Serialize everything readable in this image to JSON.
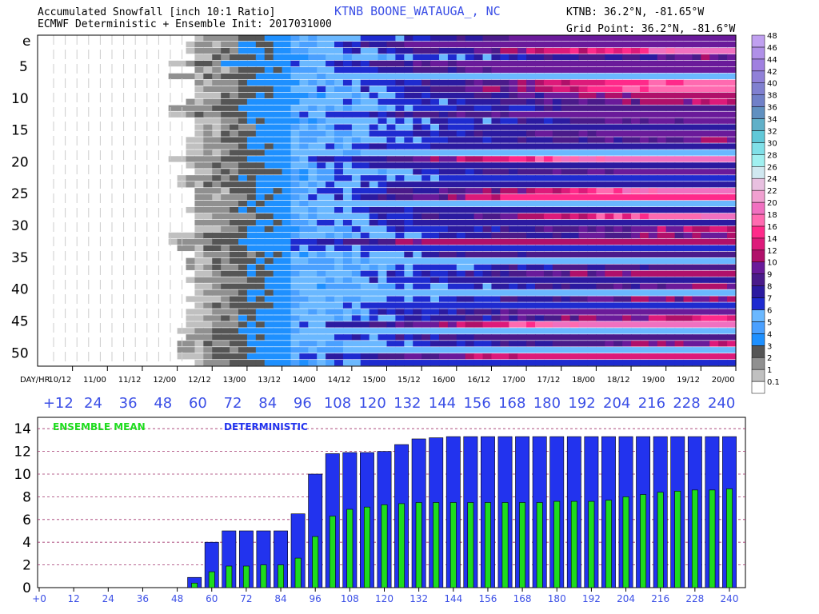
{
  "header": {
    "title_line1": "Accumulated Snowfall [inch 10:1 Ratio]",
    "title_line2": "ECMWF Deterministic + Ensemble Init: 2017031000",
    "station": "KTNB  BOONE_WATAUGA_, NC",
    "station_coords": "KTNB: 36.2°N, -81.65°W",
    "grid_point": "Grid Point: 36.2°N, -81.6°W"
  },
  "colors": {
    "accent_blue": "#3b4fe6",
    "ensemble_green": "#1edc1e",
    "deterministic_blue": "#2233ee",
    "gridline": "#a0306a"
  },
  "chart_data": [
    {
      "type": "heatmap",
      "title": "Accumulated Snowfall [inch 10:1 Ratio]",
      "ylabel_rows": [
        "e",
        "5",
        "10",
        "15",
        "20",
        "25",
        "30",
        "35",
        "40",
        "45",
        "50"
      ],
      "x_date_label": "DAY/HR",
      "x_dates": [
        "10/12",
        "11/00",
        "11/12",
        "12/00",
        "12/12",
        "13/00",
        "13/12",
        "14/00",
        "14/12",
        "15/00",
        "15/12",
        "16/00",
        "16/12",
        "17/00",
        "17/12",
        "18/00",
        "18/12",
        "19/00",
        "19/12",
        "20/00"
      ],
      "x_hours": [
        "+12",
        "24",
        "36",
        "48",
        "60",
        "72",
        "84",
        "96",
        "108",
        "120",
        "132",
        "144",
        "156",
        "168",
        "180",
        "192",
        "204",
        "216",
        "228",
        "240"
      ],
      "legend_levels": [
        "0.1",
        "1",
        "2",
        "3",
        "4",
        "5",
        "6",
        "7",
        "8",
        "9",
        "10",
        "12",
        "14",
        "16",
        "18",
        "20",
        "22",
        "24",
        "26",
        "28",
        "30",
        "32",
        "34",
        "36",
        "38",
        "40",
        "42",
        "44",
        "46",
        "48"
      ],
      "legend_colors": [
        "#ffffff",
        "#c0c0c0",
        "#909090",
        "#555555",
        "#1e90ff",
        "#4aa0ff",
        "#6ab8ff",
        "#1e2bd0",
        "#2b1aa0",
        "#4a1a8a",
        "#6a1a9a",
        "#b0106a",
        "#dd1a7a",
        "#ff2a8a",
        "#ff6ab0",
        "#f070c0",
        "#f0a0d0",
        "#e8c0e0",
        "#d0e8f0",
        "#a0f0f0",
        "#80e0e8",
        "#60c8d8",
        "#60b0c8",
        "#6090c0",
        "#7080c8",
        "#8080d0",
        "#9080d8",
        "#a080e0",
        "#b090e8",
        "#c0a0f0"
      ],
      "legend_position": "right"
    },
    {
      "type": "bar",
      "title": "",
      "x": [
        0,
        6,
        12,
        18,
        24,
        30,
        36,
        42,
        48,
        54,
        60,
        66,
        72,
        78,
        84,
        90,
        96,
        102,
        108,
        114,
        120,
        126,
        132,
        138,
        144,
        150,
        156,
        162,
        168,
        174,
        180,
        186,
        192,
        198,
        204,
        210,
        216,
        222,
        228,
        234,
        240
      ],
      "xticks": [
        "+0",
        "12",
        "24",
        "36",
        "48",
        "60",
        "72",
        "84",
        "96",
        "108",
        "120",
        "132",
        "144",
        "156",
        "168",
        "180",
        "192",
        "204",
        "216",
        "228",
        "240"
      ],
      "ylim": [
        0,
        15
      ],
      "yticks": [
        "0",
        "2",
        "4",
        "6",
        "8",
        "10",
        "12",
        "14"
      ],
      "grid": true,
      "series": [
        {
          "name": "DETERMINISTIC",
          "values": [
            0,
            0,
            0,
            0,
            0,
            0,
            0,
            0,
            0,
            0.9,
            4.0,
            5.0,
            5.0,
            5.0,
            5.0,
            6.5,
            10.0,
            11.8,
            11.9,
            11.9,
            12.0,
            12.6,
            13.1,
            13.2,
            13.3,
            13.3,
            13.3,
            13.3,
            13.3,
            13.3,
            13.3,
            13.3,
            13.3,
            13.3,
            13.3,
            13.3,
            13.3,
            13.3,
            13.3,
            13.3,
            13.3
          ]
        },
        {
          "name": "ENSEMBLE MEAN",
          "values": [
            0,
            0,
            0,
            0,
            0,
            0,
            0,
            0,
            0,
            0.4,
            1.4,
            1.9,
            1.9,
            2.0,
            2.0,
            2.6,
            4.5,
            6.3,
            6.9,
            7.1,
            7.3,
            7.4,
            7.5,
            7.5,
            7.5,
            7.5,
            7.5,
            7.5,
            7.5,
            7.5,
            7.6,
            7.6,
            7.6,
            7.7,
            8.0,
            8.2,
            8.4,
            8.5,
            8.6,
            8.6,
            8.7
          ]
        }
      ]
    }
  ]
}
